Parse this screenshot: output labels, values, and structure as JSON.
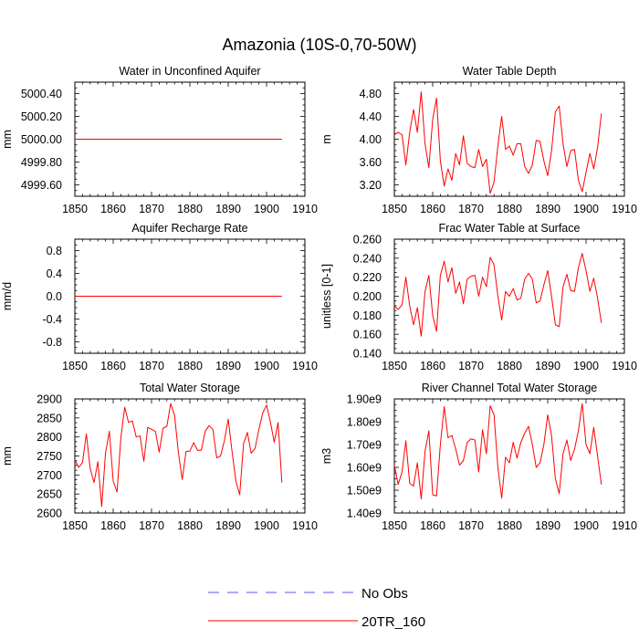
{
  "figure_title": "Amazonia (10S-0,70-50W)",
  "legend": [
    {
      "label": "No Obs",
      "color": "#5555ff",
      "style": "dashed"
    },
    {
      "label": "20TR_160",
      "color": "#ff0000",
      "style": "solid"
    }
  ],
  "chart_data": [
    {
      "type": "line",
      "title": "Water in Unconfined Aquifer",
      "ylabel": "mm",
      "xlabel": "",
      "xlim": [
        1850,
        1910
      ],
      "ylim": [
        4999.5,
        5000.5
      ],
      "x_ticks": [
        1850,
        1860,
        1870,
        1880,
        1890,
        1900,
        1910
      ],
      "x_tick_labels": [
        "1850",
        "1860",
        "1870",
        "1880",
        "1890",
        "1900",
        "1910"
      ],
      "y_ticks": [
        4999.6,
        4999.8,
        5000.0,
        5000.2,
        5000.4
      ],
      "y_tick_labels": [
        "4999.60",
        "4999.80",
        "5000.00",
        "5000.20",
        "5000.40"
      ],
      "series": [
        {
          "name": "20TR_160",
          "color": "#ff0000",
          "x_start": 1850,
          "x_step": 1,
          "values": [
            5000,
            5000,
            5000,
            5000,
            5000,
            5000,
            5000,
            5000,
            5000,
            5000,
            5000,
            5000,
            5000,
            5000,
            5000,
            5000,
            5000,
            5000,
            5000,
            5000,
            5000,
            5000,
            5000,
            5000,
            5000,
            5000,
            5000,
            5000,
            5000,
            5000,
            5000,
            5000,
            5000,
            5000,
            5000,
            5000,
            5000,
            5000,
            5000,
            5000,
            5000,
            5000,
            5000,
            5000,
            5000,
            5000,
            5000,
            5000,
            5000,
            5000,
            5000,
            5000,
            5000,
            5000,
            5000
          ]
        }
      ]
    },
    {
      "type": "line",
      "title": "Water Table Depth",
      "ylabel": "m",
      "xlabel": "",
      "xlim": [
        1850,
        1910
      ],
      "ylim": [
        3.0,
        5.0
      ],
      "x_ticks": [
        1850,
        1860,
        1870,
        1880,
        1890,
        1900,
        1910
      ],
      "x_tick_labels": [
        "1850",
        "1860",
        "1870",
        "1880",
        "1890",
        "1900",
        "1910"
      ],
      "y_ticks": [
        3.2,
        3.6,
        4.0,
        4.4,
        4.8
      ],
      "y_tick_labels": [
        "3.20",
        "3.60",
        "4.00",
        "4.40",
        "4.80"
      ],
      "series": [
        {
          "name": "20TR_160",
          "color": "#ff0000",
          "x_start": 1850,
          "x_step": 1,
          "values": [
            4.08,
            4.12,
            4.08,
            3.55,
            4.12,
            4.52,
            4.12,
            4.83,
            3.92,
            3.5,
            4.35,
            4.72,
            3.62,
            3.18,
            3.48,
            3.28,
            3.75,
            3.55,
            4.06,
            3.58,
            3.52,
            3.5,
            3.82,
            3.52,
            3.65,
            3.05,
            3.25,
            3.88,
            4.4,
            3.82,
            3.88,
            3.72,
            3.92,
            3.92,
            3.52,
            3.4,
            3.55,
            3.98,
            3.96,
            3.62,
            3.36,
            3.8,
            4.48,
            4.58,
            3.92,
            3.52,
            3.8,
            3.82,
            3.28,
            3.08,
            3.42,
            3.75,
            3.48,
            3.85,
            4.45
          ]
        }
      ]
    },
    {
      "type": "line",
      "title": "Aquifer Recharge Rate",
      "ylabel": "mm/d",
      "xlabel": "",
      "xlim": [
        1850,
        1910
      ],
      "ylim": [
        -1.0,
        1.0
      ],
      "x_ticks": [
        1850,
        1860,
        1870,
        1880,
        1890,
        1900,
        1910
      ],
      "x_tick_labels": [
        "1850",
        "1860",
        "1870",
        "1880",
        "1890",
        "1900",
        "1910"
      ],
      "y_ticks": [
        -0.8,
        -0.4,
        0.0,
        0.4,
        0.8
      ],
      "y_tick_labels": [
        "-0.8",
        "-0.4",
        "0.0",
        "0.4",
        "0.8"
      ],
      "series": [
        {
          "name": "20TR_160",
          "color": "#ff0000",
          "x_start": 1850,
          "x_step": 1,
          "values": [
            0,
            0,
            0,
            0,
            0,
            0,
            0,
            0,
            0,
            0,
            0,
            0,
            0,
            0,
            0,
            0,
            0,
            0,
            0,
            0,
            0,
            0,
            0,
            0,
            0,
            0,
            0,
            0,
            0,
            0,
            0,
            0,
            0,
            0,
            0,
            0,
            0,
            0,
            0,
            0,
            0,
            0,
            0,
            0,
            0,
            0,
            0,
            0,
            0,
            0,
            0,
            0,
            0,
            0,
            0
          ]
        }
      ]
    },
    {
      "type": "line",
      "title": "Frac Water Table at Surface",
      "ylabel": "unitless [0-1]",
      "xlabel": "",
      "xlim": [
        1850,
        1910
      ],
      "ylim": [
        0.14,
        0.26
      ],
      "x_ticks": [
        1850,
        1860,
        1870,
        1880,
        1890,
        1900,
        1910
      ],
      "x_tick_labels": [
        "1850",
        "1860",
        "1870",
        "1880",
        "1890",
        "1900",
        "1910"
      ],
      "y_ticks": [
        0.14,
        0.16,
        0.18,
        0.2,
        0.22,
        0.24,
        0.26
      ],
      "y_tick_labels": [
        "0.140",
        "0.160",
        "0.180",
        "0.200",
        "0.220",
        "0.240",
        "0.260"
      ],
      "series": [
        {
          "name": "20TR_160",
          "color": "#ff0000",
          "x_start": 1850,
          "x_step": 1,
          "values": [
            0.19,
            0.186,
            0.191,
            0.22,
            0.19,
            0.17,
            0.188,
            0.158,
            0.205,
            0.222,
            0.18,
            0.163,
            0.222,
            0.237,
            0.215,
            0.23,
            0.203,
            0.215,
            0.192,
            0.218,
            0.221,
            0.222,
            0.2,
            0.22,
            0.21,
            0.241,
            0.233,
            0.2,
            0.175,
            0.205,
            0.2,
            0.208,
            0.196,
            0.198,
            0.218,
            0.224,
            0.218,
            0.193,
            0.195,
            0.212,
            0.227,
            0.2,
            0.17,
            0.168,
            0.21,
            0.223,
            0.206,
            0.205,
            0.23,
            0.245,
            0.227,
            0.205,
            0.219,
            0.198,
            0.172
          ]
        }
      ]
    },
    {
      "type": "line",
      "title": "Total Water Storage",
      "ylabel": "mm",
      "xlabel": "",
      "xlim": [
        1850,
        1910
      ],
      "ylim": [
        2600,
        2900
      ],
      "x_ticks": [
        1850,
        1860,
        1870,
        1880,
        1890,
        1900,
        1910
      ],
      "x_tick_labels": [
        "1850",
        "1860",
        "1870",
        "1880",
        "1890",
        "1900",
        "1910"
      ],
      "y_ticks": [
        2600,
        2650,
        2700,
        2750,
        2800,
        2850,
        2900
      ],
      "y_tick_labels": [
        "2600",
        "2650",
        "2700",
        "2750",
        "2800",
        "2850",
        "2900"
      ],
      "series": [
        {
          "name": "20TR_160",
          "color": "#ff0000",
          "x_start": 1850,
          "x_step": 1,
          "values": [
            2740,
            2720,
            2733,
            2808,
            2717,
            2680,
            2735,
            2617,
            2758,
            2815,
            2684,
            2655,
            2798,
            2878,
            2838,
            2842,
            2800,
            2803,
            2736,
            2825,
            2820,
            2815,
            2760,
            2823,
            2828,
            2888,
            2857,
            2760,
            2688,
            2762,
            2763,
            2785,
            2765,
            2765,
            2815,
            2830,
            2820,
            2745,
            2750,
            2790,
            2847,
            2762,
            2684,
            2648,
            2782,
            2812,
            2757,
            2770,
            2820,
            2863,
            2884,
            2840,
            2786,
            2838,
            2680
          ]
        }
      ]
    },
    {
      "type": "line",
      "title": "River Channel Total Water Storage",
      "ylabel": "m3",
      "xlabel": "",
      "xlim": [
        1850,
        1910
      ],
      "ylim": [
        1400000000.0,
        1900000000.0
      ],
      "x_ticks": [
        1850,
        1860,
        1870,
        1880,
        1890,
        1900,
        1910
      ],
      "x_tick_labels": [
        "1850",
        "1860",
        "1870",
        "1880",
        "1890",
        "1900",
        "1910"
      ],
      "y_ticks": [
        1400000000.0,
        1500000000.0,
        1600000000.0,
        1700000000.0,
        1800000000.0,
        1900000000.0
      ],
      "y_tick_labels": [
        "1.40e9",
        "1.50e9",
        "1.60e9",
        "1.70e9",
        "1.80e9",
        "1.90e9"
      ],
      "series": [
        {
          "name": "20TR_160",
          "color": "#ff0000",
          "x_start": 1850,
          "x_step": 1,
          "values": [
            1610000000.0,
            1525000000.0,
            1580000000.0,
            1717000000.0,
            1530000000.0,
            1518000000.0,
            1620000000.0,
            1462000000.0,
            1670000000.0,
            1760000000.0,
            1480000000.0,
            1475000000.0,
            1700000000.0,
            1866000000.0,
            1730000000.0,
            1740000000.0,
            1680000000.0,
            1610000000.0,
            1630000000.0,
            1710000000.0,
            1725000000.0,
            1720000000.0,
            1580000000.0,
            1765000000.0,
            1660000000.0,
            1870000000.0,
            1830000000.0,
            1600000000.0,
            1465000000.0,
            1645000000.0,
            1620000000.0,
            1710000000.0,
            1640000000.0,
            1710000000.0,
            1750000000.0,
            1780000000.0,
            1700000000.0,
            1600000000.0,
            1620000000.0,
            1700000000.0,
            1830000000.0,
            1740000000.0,
            1550000000.0,
            1485000000.0,
            1660000000.0,
            1720000000.0,
            1630000000.0,
            1680000000.0,
            1760000000.0,
            1880000000.0,
            1700000000.0,
            1660000000.0,
            1775000000.0,
            1650000000.0,
            1525000000.0
          ]
        }
      ]
    }
  ]
}
